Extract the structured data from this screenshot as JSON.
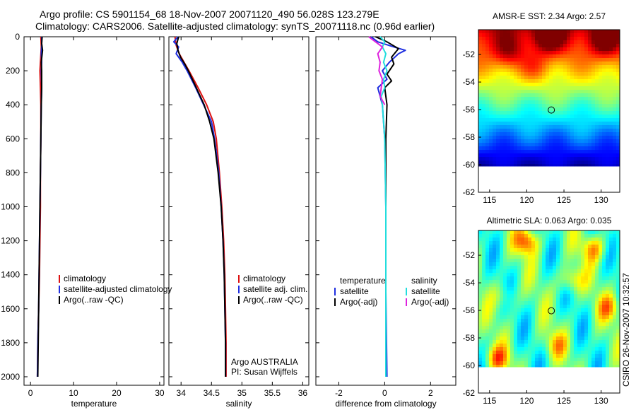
{
  "header": {
    "line1": "Argo profile: CS 5901154_68 18-Nov-2007 20071120_490 56.028S 123.279E",
    "line2": "Climatology: CARS2006. Satellite-adjusted climatology: synTS_20071118.nc (0.96d earlier)"
  },
  "side_note": "CSIRO 26-Nov-2007 10:32:57",
  "colors": {
    "climatology": "#dd1111",
    "satellite": "#1f2fe0",
    "argo": "#000000",
    "cyan": "#22dddd",
    "magenta": "#dd22dd"
  },
  "chart_data": [
    {
      "type": "line",
      "id": "temperature",
      "xlabel": "temperature",
      "xlim": [
        -1.5,
        31
      ],
      "ylim": [
        2050,
        0
      ],
      "y_reversed": true,
      "xticks": [
        0,
        10,
        20,
        30
      ],
      "xtick_labels": [
        "0",
        "10",
        "20",
        "30"
      ],
      "yticks": [
        0,
        200,
        400,
        600,
        800,
        1000,
        1200,
        1400,
        1600,
        1800,
        2000
      ],
      "ytick_labels": [
        "0",
        "200",
        "400",
        "600",
        "800",
        "1000",
        "1200",
        "1400",
        "1600",
        "1800",
        "2000"
      ],
      "legend": [
        "climatology",
        "satellite-adjusted climatology",
        "Argo(..raw -QC)"
      ],
      "series": [
        {
          "name": "climatology",
          "color_key": "climatology",
          "points": [
            [
              2.4,
              0
            ],
            [
              2.5,
              60
            ],
            [
              2.3,
              150
            ],
            [
              2.2,
              200
            ],
            [
              2.3,
              300
            ],
            [
              2.4,
              400
            ],
            [
              2.4,
              600
            ],
            [
              2.3,
              800
            ],
            [
              2.3,
              1000
            ],
            [
              2.2,
              1200
            ],
            [
              2.1,
              1400
            ],
            [
              1.9,
              1600
            ],
            [
              1.7,
              1800
            ],
            [
              1.6,
              2000
            ]
          ]
        },
        {
          "name": "satellite-adjusted climatology",
          "color_key": "satellite",
          "points": [
            [
              2.6,
              0
            ],
            [
              2.6,
              50
            ],
            [
              2.5,
              100
            ],
            [
              2.6,
              150
            ],
            [
              2.5,
              200
            ],
            [
              2.6,
              300
            ],
            [
              2.5,
              400
            ],
            [
              2.4,
              600
            ],
            [
              2.3,
              800
            ],
            [
              2.2,
              1000
            ],
            [
              2.1,
              1200
            ],
            [
              2.0,
              1400
            ],
            [
              1.9,
              1600
            ],
            [
              1.7,
              1800
            ],
            [
              1.6,
              2000
            ]
          ]
        },
        {
          "name": "Argo(..raw -QC)",
          "color_key": "argo",
          "points": [
            [
              2.7,
              0
            ],
            [
              2.6,
              40
            ],
            [
              2.8,
              80
            ],
            [
              2.5,
              150
            ],
            [
              2.6,
              200
            ],
            [
              2.6,
              300
            ],
            [
              2.5,
              400
            ],
            [
              2.4,
              600
            ],
            [
              2.3,
              800
            ],
            [
              2.2,
              1000
            ],
            [
              2.1,
              1200
            ],
            [
              2.0,
              1400
            ],
            [
              1.9,
              1600
            ],
            [
              1.8,
              1800
            ],
            [
              1.7,
              2000
            ]
          ]
        }
      ]
    },
    {
      "type": "line",
      "id": "salinity",
      "xlabel": "salinity",
      "xlim": [
        33.8,
        36.1
      ],
      "ylim": [
        2050,
        0
      ],
      "y_reversed": true,
      "xticks": [
        34,
        34.5,
        35,
        35.5,
        36
      ],
      "xtick_labels": [
        "34",
        "34.5",
        "35",
        "35.5",
        "36"
      ],
      "legend": [
        "climatology",
        "satellite adj. clim.",
        "Argo(..raw -QC)"
      ],
      "note_lines": [
        "Argo AUSTRALIA",
        "PI: Susan Wijffels"
      ],
      "series": [
        {
          "name": "climatology",
          "color_key": "climatology",
          "points": [
            [
              33.9,
              0
            ],
            [
              33.92,
              50
            ],
            [
              33.97,
              100
            ],
            [
              34.05,
              150
            ],
            [
              34.13,
              200
            ],
            [
              34.28,
              300
            ],
            [
              34.42,
              400
            ],
            [
              34.53,
              500
            ],
            [
              34.58,
              600
            ],
            [
              34.63,
              800
            ],
            [
              34.67,
              1000
            ],
            [
              34.7,
              1200
            ],
            [
              34.72,
              1400
            ],
            [
              34.73,
              1600
            ],
            [
              34.74,
              1800
            ],
            [
              34.74,
              2000
            ]
          ]
        },
        {
          "name": "satellite adj. clim.",
          "color_key": "satellite",
          "points": [
            [
              33.95,
              0
            ],
            [
              33.88,
              30
            ],
            [
              33.96,
              60
            ],
            [
              33.92,
              100
            ],
            [
              34.02,
              150
            ],
            [
              34.1,
              200
            ],
            [
              34.24,
              300
            ],
            [
              34.37,
              400
            ],
            [
              34.5,
              500
            ],
            [
              34.55,
              600
            ],
            [
              34.62,
              800
            ],
            [
              34.66,
              1000
            ],
            [
              34.69,
              1200
            ],
            [
              34.71,
              1400
            ],
            [
              34.72,
              1600
            ],
            [
              34.73,
              1800
            ],
            [
              34.73,
              2000
            ]
          ]
        },
        {
          "name": "Argo(..raw -QC)",
          "color_key": "argo",
          "points": [
            [
              33.96,
              0
            ],
            [
              33.93,
              40
            ],
            [
              33.95,
              80
            ],
            [
              33.99,
              120
            ],
            [
              34.06,
              160
            ],
            [
              34.12,
              200
            ],
            [
              34.25,
              300
            ],
            [
              34.38,
              400
            ],
            [
              34.47,
              500
            ],
            [
              34.54,
              600
            ],
            [
              34.61,
              800
            ],
            [
              34.66,
              1000
            ],
            [
              34.69,
              1200
            ],
            [
              34.71,
              1400
            ],
            [
              34.72,
              1600
            ],
            [
              34.73,
              1800
            ],
            [
              34.73,
              2000
            ]
          ]
        }
      ]
    },
    {
      "type": "line",
      "id": "difference",
      "xlabel": "difference from climatology",
      "xlim": [
        -3,
        3.1
      ],
      "ylim": [
        2050,
        0
      ],
      "y_reversed": true,
      "xticks": [
        -2,
        0,
        2
      ],
      "xtick_labels": [
        "-2",
        "0",
        "2"
      ],
      "legend_temperature": {
        "title": "temperature",
        "items": [
          "satellite",
          "Argo(-adj)"
        ]
      },
      "legend_salinity": {
        "title": "salinity",
        "items": [
          "satellite",
          "Argo(-adj)"
        ]
      },
      "series": [
        {
          "name": "temperature satellite",
          "color_key": "satellite",
          "points": [
            [
              -0.6,
              0
            ],
            [
              -0.3,
              30
            ],
            [
              0.4,
              60
            ],
            [
              0.9,
              80
            ],
            [
              0.6,
              100
            ],
            [
              0.2,
              150
            ],
            [
              -0.1,
              200
            ],
            [
              0.1,
              250
            ],
            [
              -0.3,
              300
            ],
            [
              -0.2,
              350
            ],
            [
              -0.1,
              400
            ],
            [
              0,
              600
            ],
            [
              0.05,
              1000
            ],
            [
              0.05,
              1500
            ],
            [
              0.1,
              2000
            ]
          ]
        },
        {
          "name": "temperature Argo(-adj)",
          "color_key": "argo",
          "points": [
            [
              -0.4,
              0
            ],
            [
              0.1,
              30
            ],
            [
              0.6,
              70
            ],
            [
              0.3,
              120
            ],
            [
              0.4,
              160
            ],
            [
              0.1,
              220
            ],
            [
              0.3,
              260
            ],
            [
              0,
              300
            ],
            [
              0.1,
              400
            ],
            [
              0.05,
              600
            ],
            [
              0.05,
              800
            ],
            [
              0.05,
              1000
            ],
            [
              0.05,
              1500
            ],
            [
              0.05,
              2000
            ]
          ]
        },
        {
          "name": "salinity satellite",
          "color_key": "cyan",
          "points": [
            [
              -0.2,
              0
            ],
            [
              0,
              30
            ],
            [
              -0.1,
              60
            ],
            [
              0.05,
              100
            ],
            [
              -0.05,
              150
            ],
            [
              0.1,
              200
            ],
            [
              -0.05,
              250
            ],
            [
              0,
              300
            ],
            [
              -0.15,
              350
            ],
            [
              -0.1,
              400
            ],
            [
              0,
              600
            ],
            [
              0.05,
              1000
            ],
            [
              0.05,
              2000
            ]
          ]
        },
        {
          "name": "salinity Argo(-adj)",
          "color_key": "magenta",
          "points": [
            [
              -0.7,
              0
            ],
            [
              -0.4,
              30
            ],
            [
              -0.1,
              60
            ],
            [
              -0.3,
              100
            ],
            [
              -0.2,
              150
            ],
            [
              -0.25,
              200
            ],
            [
              -0.1,
              250
            ],
            [
              -0.2,
              350
            ],
            [
              0,
              400
            ]
          ]
        }
      ]
    },
    {
      "type": "heatmap",
      "id": "sst_map",
      "title": "AMSR-E SST: 2.34 Argo: 2.57",
      "xlim": [
        113.5,
        132.5
      ],
      "ylim": [
        -62,
        -50.2
      ],
      "xticks": [
        115,
        120,
        125,
        130
      ],
      "xtick_labels": [
        "115",
        "120",
        "125",
        "130"
      ],
      "yticks": [
        -52,
        -54,
        -56,
        -58,
        -60,
        -62
      ],
      "ytick_labels": [
        "-52",
        "-54",
        "-56",
        "-58",
        "-60",
        "-62"
      ],
      "data_ylim": [
        -60.1,
        -50.2
      ],
      "marker": [
        123.3,
        -56.03
      ]
    },
    {
      "type": "heatmap",
      "id": "sla_map",
      "title": "Altimetric SLA: 0.063 Argo: 0.035",
      "xlim": [
        113.5,
        132.5
      ],
      "ylim": [
        -62,
        -50.2
      ],
      "xticks": [
        115,
        120,
        125,
        130
      ],
      "xtick_labels": [
        "115",
        "120",
        "125",
        "130"
      ],
      "yticks": [
        -52,
        -54,
        -56,
        -58,
        -60,
        -62
      ],
      "ytick_labels": [
        "-52",
        "-54",
        "-56",
        "-58",
        "-60",
        "-62"
      ],
      "data_ylim": [
        -60.1,
        -50.2
      ],
      "marker": [
        123.3,
        -56.03
      ]
    }
  ]
}
